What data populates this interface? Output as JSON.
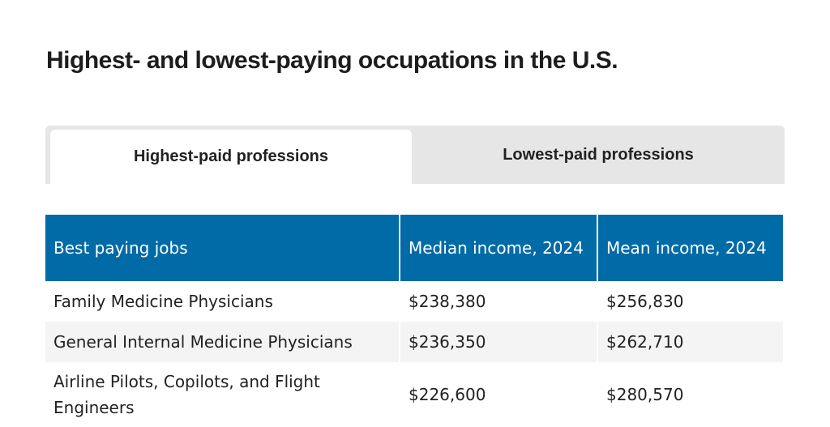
{
  "title": "Highest- and lowest-paying occupations in the U.S.",
  "tabs": [
    {
      "label": "Highest-paid professions",
      "active": true
    },
    {
      "label": "Lowest-paid professions",
      "active": false
    }
  ],
  "table": {
    "headers": [
      "Best paying jobs",
      "Median income, 2024",
      "Mean income, 2024"
    ],
    "rows": [
      [
        "Family Medicine Physicians",
        "$238,380",
        "$256,830"
      ],
      [
        "General Internal Medicine Physicians",
        "$236,350",
        "$262,710"
      ],
      [
        "Airline Pilots, Copilots, and Flight Engineers",
        "$226,600",
        "$280,570"
      ]
    ]
  },
  "colors": {
    "header": "#006ba6",
    "stripe": "#f4f4f4",
    "tabbar": "#e6e6e6"
  }
}
